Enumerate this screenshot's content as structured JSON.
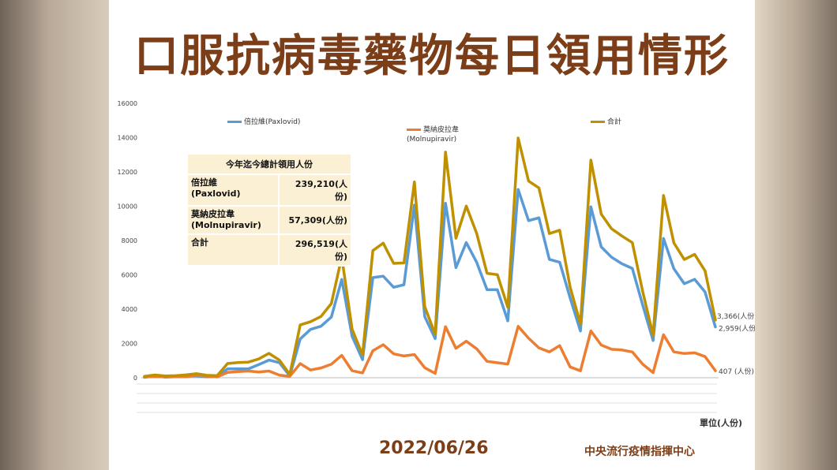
{
  "title": "口服抗病毒藥物每日領用情形",
  "date": "2022/06/26",
  "organization": "中央流行疫情指揮中心",
  "unit_label": "單位(人份)",
  "summary": {
    "header": "今年迄今總計領用人份",
    "rows": [
      {
        "label": "倍拉維\n(Paxlovid)",
        "value": "239,210(人份)"
      },
      {
        "label": "莫納皮拉韋\n(Molnupiravir)",
        "value": "57,309(人份)"
      },
      {
        "label": "合計",
        "value": "296,519(人份)"
      }
    ]
  },
  "chart_data": {
    "type": "line",
    "ylim": [
      0,
      16000
    ],
    "yticks": [
      0,
      2000,
      4000,
      6000,
      8000,
      10000,
      12000,
      14000,
      16000
    ],
    "grid": false,
    "legend_position": "top",
    "series": [
      {
        "name": "倍拉維(Paxlovid)",
        "color": "#5b9bd5",
        "end_label": "2,959(人份)",
        "values": [
          23,
          100,
          33,
          60,
          111,
          100,
          51,
          73,
          513,
          526,
          520,
          762,
          1028,
          876,
          106,
          2261,
          2819,
          3001,
          3535,
          5735,
          2420,
          1053,
          5840,
          5922,
          5272,
          5425,
          10066,
          3561,
          2280,
          10175,
          6420,
          7882,
          6726,
          5130,
          5133,
          3313,
          10979,
          9160,
          9325,
          6900,
          6734,
          4656,
          2728,
          9961,
          7632,
          7025,
          6644,
          6371,
          4226,
          2170,
          8120,
          6355,
          5480,
          5736,
          5001,
          2959
        ]
      },
      {
        "name": "莫納皮拉韋\n(Molnupiravir)",
        "color": "#ed7d31",
        "end_label": "407 (人份)",
        "values": [
          59,
          61,
          71,
          60,
          53,
          141,
          90,
          48,
          314,
          358,
          392,
          330,
          391,
          149,
          82,
          821,
          450,
          570,
          787,
          1306,
          410,
          282,
          1571,
          1927,
          1394,
          1268,
          1351,
          582,
          252,
          2977,
          1715,
          2129,
          1689,
          957,
          875,
          795,
          2996,
          2305,
          1743,
          1503,
          1870,
          632,
          405,
          2730,
          1908,
          1661,
          1619,
          1503,
          786,
          300,
          2507,
          1509,
          1413,
          1455,
          1232,
          407
        ]
      },
      {
        "name": "合計",
        "color": "#bf9000",
        "end_label": "3,366(人份)",
        "values": [
          82,
          161,
          104,
          120,
          164,
          241,
          141,
          121,
          827,
          884,
          912,
          1092,
          1419,
          1025,
          188,
          3082,
          3269,
          3571,
          4322,
          7041,
          2830,
          1335,
          7411,
          7849,
          6666,
          6693,
          11417,
          4143,
          2532,
          13152,
          8135,
          10011,
          8415,
          6087,
          6008,
          4108,
          13975,
          11465,
          11068,
          8403,
          8604,
          5288,
          3133,
          12691,
          9540,
          8686,
          8263,
          7874,
          5012,
          2470,
          10627,
          7864,
          6893,
          7191,
          6233,
          3366
        ]
      }
    ]
  }
}
